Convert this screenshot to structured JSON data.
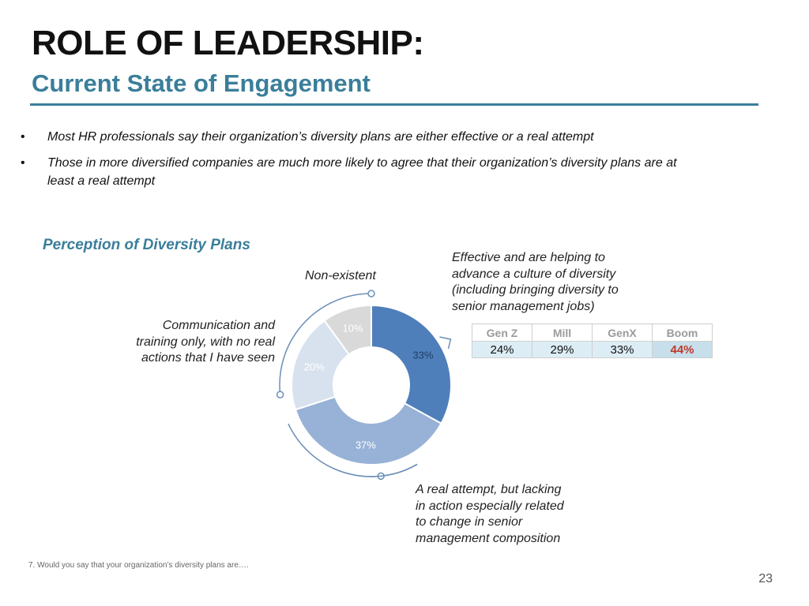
{
  "header": {
    "title": "ROLE OF LEADERSHIP:",
    "subtitle": "Current State of Engagement"
  },
  "bullets": [
    "Most HR professionals say their organization’s diversity plans are either effective or a real attempt",
    "Those in more diversified companies are much more likely to agree that their organization’s diversity plans are at least a real attempt"
  ],
  "bullet_marker": "•",
  "chart_data": {
    "type": "pie",
    "title": "Perception of Diversity Plans",
    "donut": true,
    "slices": [
      {
        "label": "Effective and are helping to advance a culture of diversity (including bringing diversity to senior management jobs)",
        "value": 33,
        "display": "33%",
        "color": "#4f7fba"
      },
      {
        "label": "A real attempt, but lacking in action especially related to change in senior management composition",
        "value": 37,
        "display": "37%",
        "color": "#97b2d6"
      },
      {
        "label": "Communication and training only, with no real actions that I have seen",
        "value": 20,
        "display": "20%",
        "color": "#d7e2ee"
      },
      {
        "label": "Non-existent",
        "value": 10,
        "display": "10%",
        "color": "#d9d9d9"
      }
    ],
    "label_colors": [
      "#1f3f66",
      "#ffffff",
      "#ffffff",
      "#ffffff"
    ]
  },
  "callouts": {
    "effective": [
      "Effective and are helping to",
      "advance a culture of diversity",
      "(including bringing diversity to",
      "senior management jobs)"
    ],
    "real_attempt": [
      "A real attempt, but lacking",
      "in action especially related",
      "to change in senior",
      "management composition"
    ],
    "communication": [
      "Communication and",
      "training only, with no real",
      "actions that I have seen"
    ],
    "nonexistent": [
      "Non-existent"
    ]
  },
  "generation_table": {
    "headers": [
      "Gen Z",
      "Mill",
      "GenX",
      "Boom"
    ],
    "values": [
      "24%",
      "29%",
      "33%",
      "44%"
    ],
    "highlight_color": "#c0392b"
  },
  "footnote": "7. Would you say that your organization’s diversity plans are….",
  "page_number": "23",
  "colors": {
    "accent": "#3a7e9a",
    "arc": "#6b8fb8"
  }
}
